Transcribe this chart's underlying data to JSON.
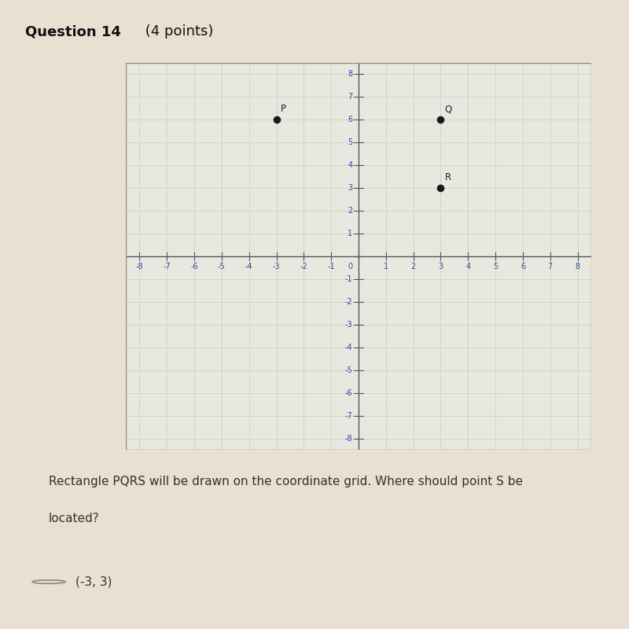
{
  "title_bold": "Question 14",
  "title_normal": " (4 points)",
  "points": {
    "P": [
      -3,
      6
    ],
    "Q": [
      3,
      6
    ],
    "R": [
      3,
      3
    ]
  },
  "point_color": "#1a1a1a",
  "dot_size": 35,
  "xlim": [
    -8.5,
    8.5
  ],
  "ylim": [
    -8.5,
    8.5
  ],
  "xticks": [
    -8,
    -7,
    -6,
    -5,
    -4,
    -3,
    -2,
    -1,
    0,
    1,
    2,
    3,
    4,
    5,
    6,
    7,
    8
  ],
  "yticks": [
    -8,
    -7,
    -6,
    -5,
    -4,
    -3,
    -2,
    -1,
    0,
    1,
    2,
    3,
    4,
    5,
    6,
    7,
    8
  ],
  "grid_color": "#c8d4c8",
  "axis_color": "#555555",
  "page_bg": "#e8e0d0",
  "plot_bg": "#e8e8e0",
  "tick_color": "#3344aa",
  "question_line1": "Rectangle PQRS will be drawn on the coordinate grid. Where should point S be",
  "question_line2": "located?",
  "answer_text": "(-3, 3)",
  "title_fontsize": 13,
  "tick_fontsize": 7,
  "label_fontsize": 8.5,
  "text_fontsize": 11,
  "answer_fontsize": 11
}
